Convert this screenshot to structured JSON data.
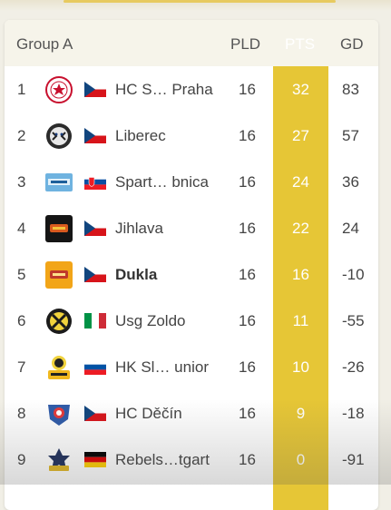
{
  "header": {
    "group": "Group A",
    "pld": "PLD",
    "pts": "PTS",
    "gd": "GD"
  },
  "rows": [
    {
      "rank": "1",
      "team": "HC S… Praha",
      "pld": "16",
      "pts": "32",
      "gd": "83",
      "flag": "CZ",
      "logo": "slavia-crest-icon"
    },
    {
      "rank": "2",
      "team": "Liberec",
      "pld": "16",
      "pts": "27",
      "gd": "57",
      "flag": "CZ",
      "logo": "tiger-logo-icon"
    },
    {
      "rank": "3",
      "team": "Spart… bnica",
      "pld": "16",
      "pts": "24",
      "gd": "36",
      "flag": "SK",
      "logo": "spartak-logo-icon"
    },
    {
      "rank": "4",
      "team": "Jihlava",
      "pld": "16",
      "pts": "22",
      "gd": "24",
      "flag": "CZ",
      "logo": "dukla-logo-icon"
    },
    {
      "rank": "5",
      "team": "Dukla",
      "pld": "16",
      "pts": "16",
      "gd": "-10",
      "flag": "CZ",
      "logo": "dukla-orange-logo-icon"
    },
    {
      "rank": "6",
      "team": "Usg Zoldo",
      "pld": "16",
      "pts": "11",
      "gd": "-55",
      "flag": "IT",
      "logo": "zoldo-crest-icon"
    },
    {
      "rank": "7",
      "team": "HK Sl… unior",
      "pld": "16",
      "pts": "10",
      "gd": "-26",
      "flag": "SI",
      "logo": "mascot-logo-icon"
    },
    {
      "rank": "8",
      "team": "HC Děčín",
      "pld": "16",
      "pts": "9",
      "gd": "-18",
      "flag": "CZ",
      "logo": "lion-logo-icon"
    },
    {
      "rank": "9",
      "team": "Rebels…tgart",
      "pld": "16",
      "pts": "0",
      "gd": "-91",
      "flag": "DE",
      "logo": "rebels-logo-icon"
    }
  ],
  "colors": {
    "highlight": "#e6c636",
    "header_bg": "#f6f4ea",
    "page_bg": "#f1efe6"
  }
}
